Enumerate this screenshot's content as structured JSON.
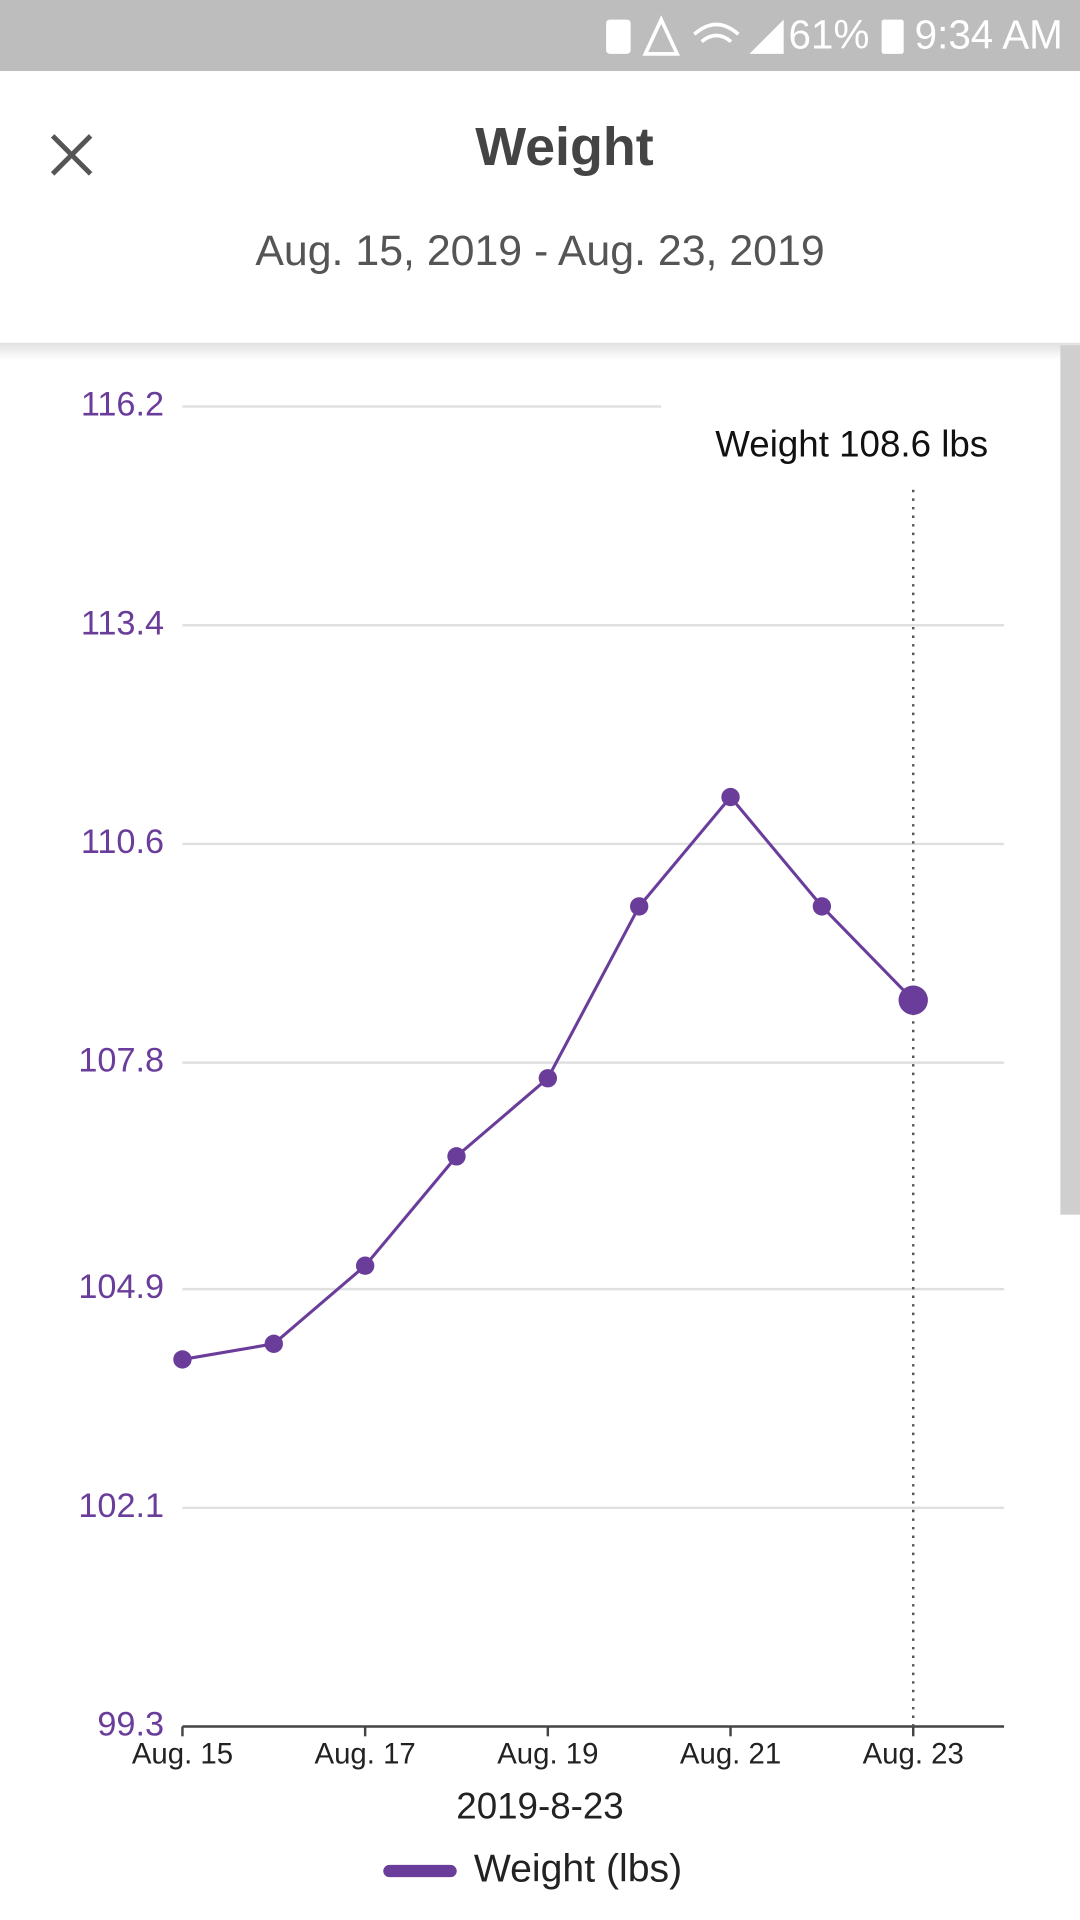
{
  "status_bar": {
    "battery": "61%",
    "time": "9:34 AM"
  },
  "header": {
    "title": "Weight",
    "subtitle": "Aug. 15, 2019 - Aug. 23, 2019"
  },
  "chart_data": {
    "type": "line",
    "categories": [
      "Aug. 15",
      null,
      "Aug. 17",
      null,
      "Aug. 19",
      null,
      "Aug. 21",
      null,
      "Aug. 23"
    ],
    "series": [
      {
        "name": "Weight (lbs)",
        "color": "#6a3d9a",
        "values": [
          104.0,
          104.2,
          105.2,
          106.6,
          107.6,
          109.8,
          111.2,
          109.8,
          108.6
        ]
      }
    ],
    "x_label": "2019-8-23",
    "ylim": [
      99.3,
      116.2
    ],
    "yticks": [
      99.3,
      102.1,
      104.9,
      107.8,
      110.6,
      113.4,
      116.2
    ],
    "grid": true,
    "tooltip": {
      "text": "Weight 108.6 lbs",
      "index": 8
    },
    "legend": "bottom"
  }
}
